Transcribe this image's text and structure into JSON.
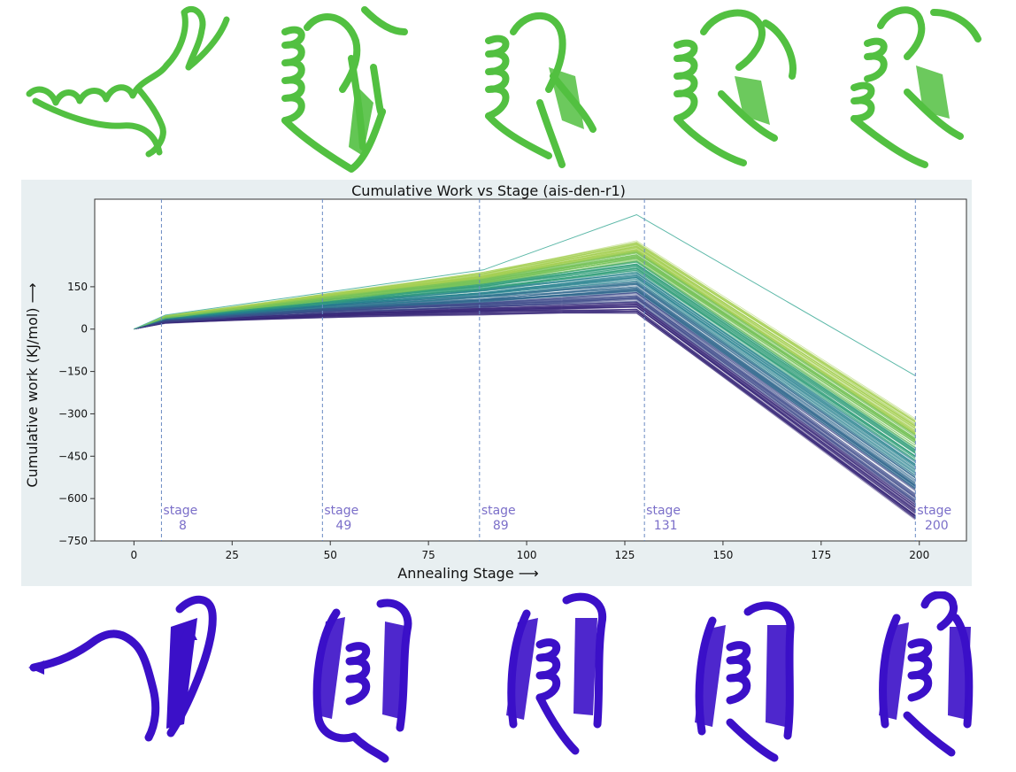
{
  "figure": {
    "top_structure_color": "#52c041",
    "bottom_structure_color": "#3b10c8",
    "panel_color": "#e8eff1",
    "top_structures": [
      "ribbon-structure-1",
      "ribbon-structure-2",
      "ribbon-structure-3",
      "ribbon-structure-4",
      "ribbon-structure-5"
    ],
    "bottom_structures": [
      "ribbon-structure-1",
      "ribbon-structure-2",
      "ribbon-structure-3",
      "ribbon-structure-4",
      "ribbon-structure-5"
    ]
  },
  "chart_data": {
    "type": "line",
    "title": "Cumulative Work vs Stage (ais-den-r1)",
    "xlabel": "Annealing Stage ⟶",
    "ylabel": "Cumulative work (KJ/mol) ⟶",
    "xlim": [
      -10,
      212
    ],
    "ylim": [
      -750,
      460
    ],
    "xticks": [
      0,
      25,
      50,
      75,
      100,
      125,
      150,
      175,
      200
    ],
    "yticks": [
      -750,
      -600,
      -450,
      -300,
      -150,
      0,
      150
    ],
    "grid": false,
    "colormap": [
      "#3b2a7a",
      "#3e4a8a",
      "#31688e",
      "#26828e",
      "#35a07c",
      "#76c25a",
      "#a6cf53"
    ],
    "series_summary": {
      "x": [
        0,
        8,
        49,
        89,
        128,
        199
      ],
      "low_envelope": [
        0,
        25,
        45,
        55,
        60,
        -670
      ],
      "high_envelope": [
        0,
        45,
        125,
        200,
        310,
        -320
      ],
      "outlier": [
        0,
        50,
        130,
        210,
        405,
        -165
      ]
    },
    "stage_markers": [
      {
        "x": 7,
        "label": "stage",
        "value": "8"
      },
      {
        "x": 48,
        "label": "stage",
        "value": "49"
      },
      {
        "x": 88,
        "label": "stage",
        "value": "89"
      },
      {
        "x": 130,
        "label": "stage",
        "value": "131"
      },
      {
        "x": 199,
        "label": "stage",
        "value": "200"
      }
    ],
    "marker_color": "#7b6fc9"
  }
}
